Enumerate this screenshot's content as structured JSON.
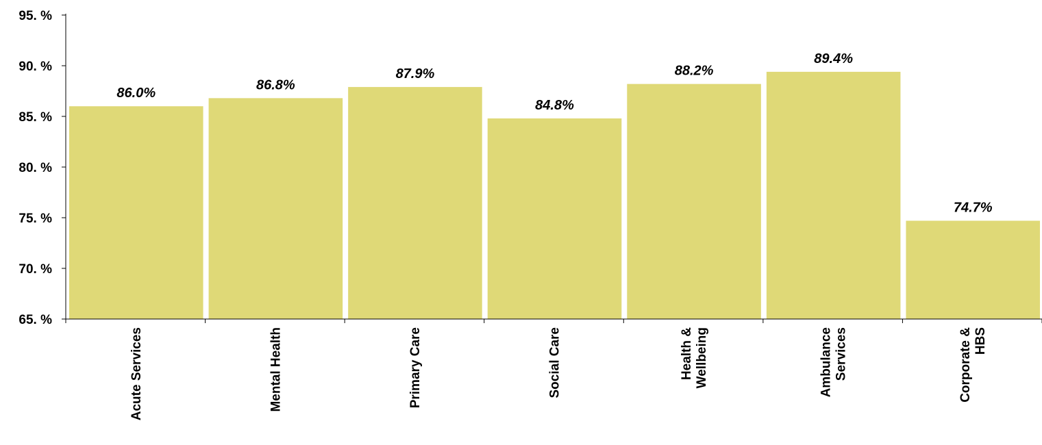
{
  "chart_data": {
    "type": "bar",
    "title": "",
    "xlabel": "",
    "ylabel": "",
    "categories": [
      [
        "Acute Services"
      ],
      [
        "Mental Health"
      ],
      [
        "Primary Care"
      ],
      [
        "Social Care"
      ],
      [
        "Health &",
        "Wellbeing"
      ],
      [
        "Ambulance",
        "Services"
      ],
      [
        "Corporate &",
        "HBS"
      ]
    ],
    "values": [
      86.0,
      86.8,
      87.9,
      84.8,
      88.2,
      89.4,
      74.7
    ],
    "data_labels": [
      "86.0%",
      "86.8%",
      "87.9%",
      "84.8%",
      "88.2%",
      "89.4%",
      "74.7%"
    ],
    "ylim": [
      65,
      95
    ],
    "y_ticks": [
      95,
      90,
      85,
      80,
      75,
      70,
      65
    ],
    "y_tick_labels": [
      "95. %",
      "90. %",
      "85. %",
      "80. %",
      "75. %",
      "70. %",
      "65. %"
    ],
    "grid": false,
    "legend": "none",
    "bar_color": "#dfd977",
    "axis_color": "#000000"
  }
}
